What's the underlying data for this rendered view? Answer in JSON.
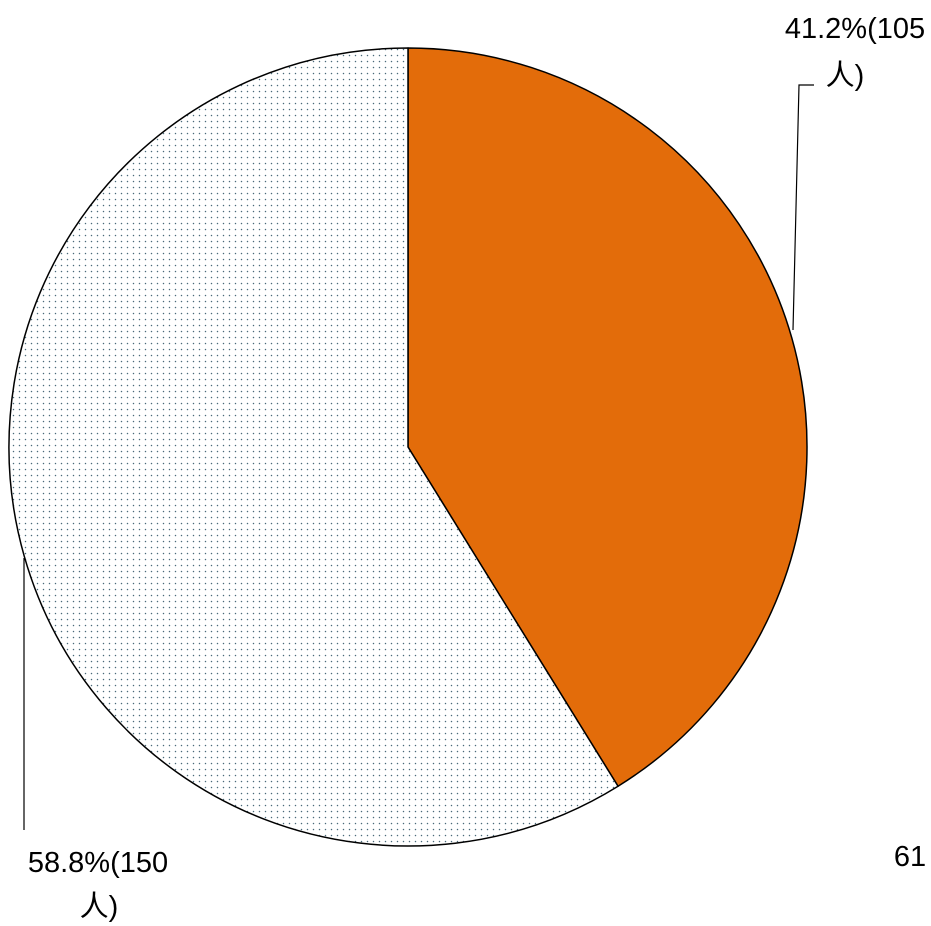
{
  "chart_data": {
    "type": "pie",
    "slices": [
      {
        "value": 105,
        "percent": 41.2,
        "label_line1": "41.2%(105",
        "label_line2": "人)",
        "color": "#E36C0A",
        "pattern": "solid"
      },
      {
        "value": 150,
        "percent": 58.8,
        "label_line1": "58.8%(150",
        "label_line2": "人)",
        "color": "#FFFFFF",
        "pattern": "dotted",
        "dot_color": "#4A6A7A"
      }
    ],
    "start_angle_deg": 0,
    "direction": "clockwise"
  },
  "page_number": "61"
}
